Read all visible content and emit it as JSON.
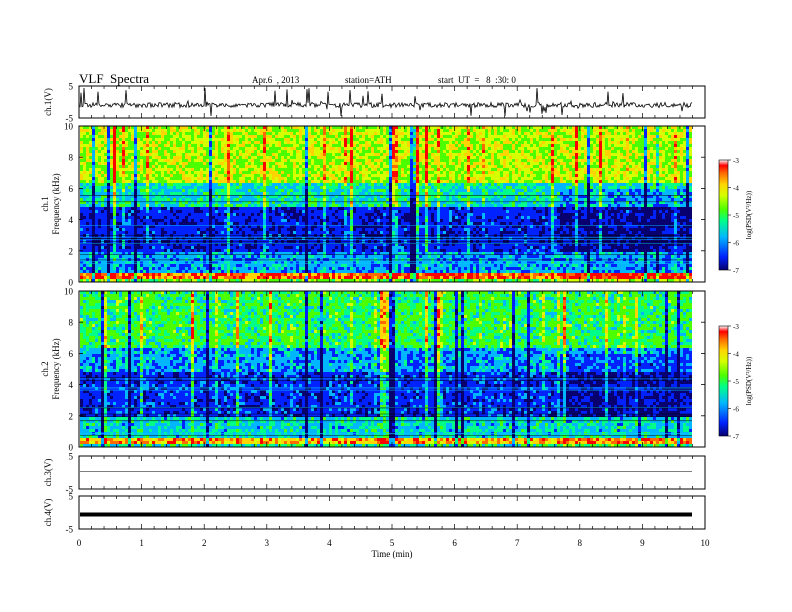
{
  "header": {
    "title": "VLF  Spectra",
    "date": "Apr.6  , 2013",
    "station": "station=ATH",
    "start_ut": "start  UT  =   8  :30: 0"
  },
  "colors": {
    "colormap": [
      "#08006e",
      "#0022ff",
      "#00b7ff",
      "#00ff88",
      "#4cff00",
      "#d6ff00",
      "#ffd400",
      "#ff6a00",
      "#ff0000",
      "#ffffff"
    ],
    "trace": "#000000",
    "axes": "#000000"
  },
  "chart_data": [
    {
      "id": "ch1",
      "type": "line",
      "ylabel": "ch.1(V)",
      "yticks": [
        "5",
        "-5"
      ],
      "ylim": [
        -5,
        5
      ],
      "description_level": 0.0
    },
    {
      "id": "ch1_spec",
      "type": "heatmap",
      "ylabel_channel": "ch.1",
      "ylabel": "Frequency  (kHz)",
      "yticks": [
        "10",
        "8",
        "6",
        "4",
        "2",
        "0"
      ],
      "ylim": [
        0,
        10
      ],
      "colorbar": {
        "label": "log(PSD(V²/Hz))",
        "ticks": [
          "-3",
          "-4",
          "-5",
          "-6",
          "-7"
        ],
        "range": [
          -7,
          -3
        ]
      },
      "bands": [
        {
          "f_from": 0.0,
          "f_to": 0.3,
          "logpsd": -4.5
        },
        {
          "f_from": 0.3,
          "f_to": 0.6,
          "logpsd": -3.3
        },
        {
          "f_from": 0.6,
          "f_to": 2.0,
          "logpsd": -5.6
        },
        {
          "f_from": 2.0,
          "f_to": 5.0,
          "logpsd": -6.3
        },
        {
          "f_from": 5.0,
          "f_to": 6.5,
          "logpsd": -5.2
        },
        {
          "f_from": 6.5,
          "f_to": 10.0,
          "logpsd": -4.2
        }
      ]
    },
    {
      "id": "ch2_spec",
      "type": "heatmap",
      "ylabel_channel": "ch.2",
      "ylabel": "Frequency  (kHz)",
      "yticks": [
        "10",
        "8",
        "6",
        "4",
        "2",
        "0"
      ],
      "ylim": [
        0,
        10
      ],
      "colorbar": {
        "label": "log(PSD(V²/Hz))",
        "ticks": [
          "-3",
          "-4",
          "-5",
          "-6",
          "-7"
        ],
        "range": [
          -7,
          -3
        ]
      },
      "bands": [
        {
          "f_from": 0.0,
          "f_to": 0.3,
          "logpsd": -5.0
        },
        {
          "f_from": 0.3,
          "f_to": 0.6,
          "logpsd": -3.6
        },
        {
          "f_from": 0.6,
          "f_to": 2.0,
          "logpsd": -5.3
        },
        {
          "f_from": 2.0,
          "f_to": 5.0,
          "logpsd": -6.2
        },
        {
          "f_from": 5.0,
          "f_to": 6.5,
          "logpsd": -5.6
        },
        {
          "f_from": 6.5,
          "f_to": 10.0,
          "logpsd": -4.8
        }
      ]
    },
    {
      "id": "ch3",
      "type": "line",
      "ylabel": "ch.3(V)",
      "yticks": [
        "5",
        "-5"
      ],
      "ylim": [
        -5,
        5
      ],
      "description_level": 0.0
    },
    {
      "id": "ch4",
      "type": "line",
      "ylabel": "ch.4(V)",
      "yticks": [
        "5",
        "-5"
      ],
      "ylim": [
        -5,
        5
      ],
      "description_level": 0.0
    }
  ],
  "xaxis": {
    "label": "Time  (min)",
    "ticks": [
      "0",
      "1",
      "2",
      "3",
      "4",
      "5",
      "6",
      "7",
      "8",
      "9",
      "10"
    ],
    "xlim": [
      0,
      10
    ],
    "data_end": 9.8
  }
}
